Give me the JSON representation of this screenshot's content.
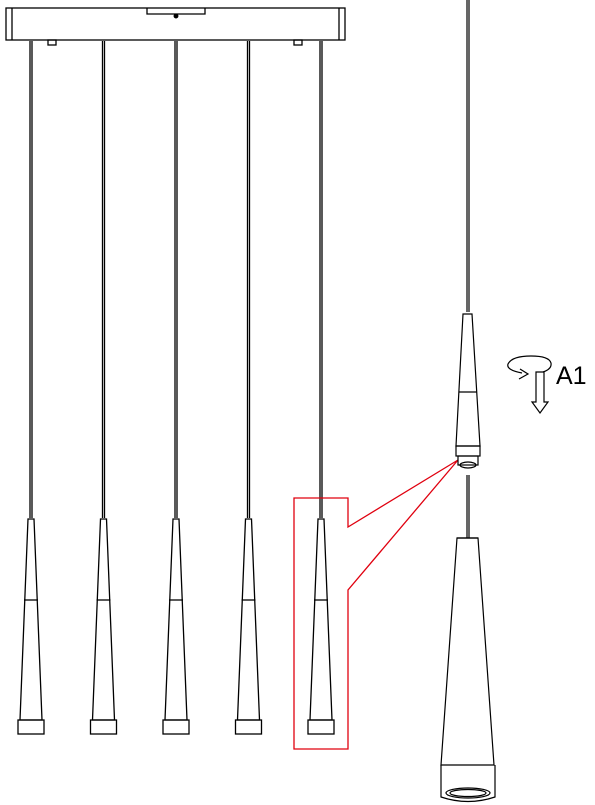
{
  "diagram": {
    "step_label": "A1",
    "pendant_count": 5,
    "colors": {
      "line": "#000000",
      "highlight": "#e0000f",
      "background": "#ffffff"
    },
    "icons": [
      "rotate-arrow-icon"
    ]
  }
}
